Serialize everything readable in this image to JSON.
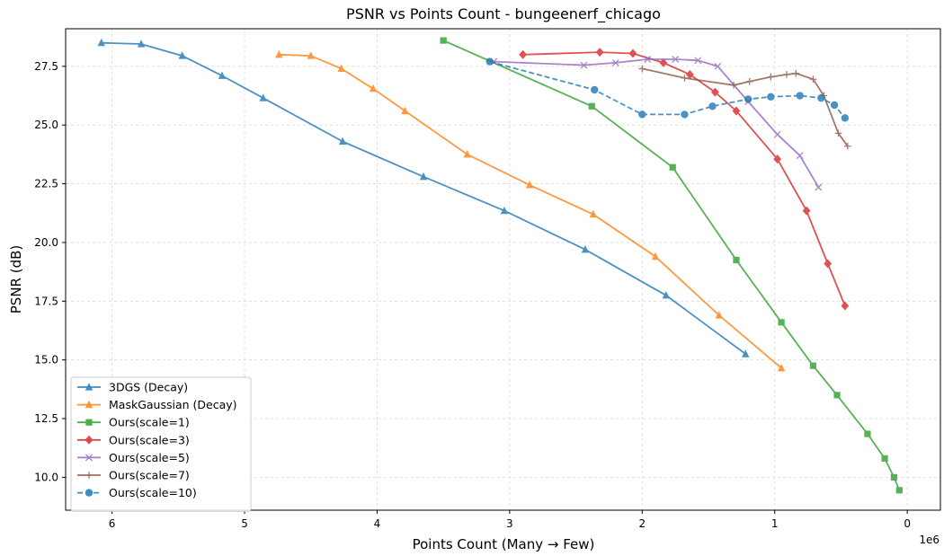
{
  "chart_data": {
    "type": "line",
    "title": "PSNR vs Points Count - bungeenerf_chicago",
    "xlabel": "Points Count (Many → Few)",
    "ylabel": "PSNR (dB)",
    "x_offset_label": "1e6",
    "x_inverted": true,
    "xlim": [
      6.35,
      -0.25
    ],
    "ylim": [
      8.6,
      29.1
    ],
    "x_ticks": [
      6,
      5,
      4,
      3,
      2,
      1,
      0
    ],
    "y_ticks": [
      10.0,
      12.5,
      15.0,
      17.5,
      20.0,
      22.5,
      25.0,
      27.5
    ],
    "x_tick_labels": [
      "6",
      "5",
      "4",
      "3",
      "2",
      "1",
      "0"
    ],
    "y_tick_labels": [
      "10.0",
      "12.5",
      "15.0",
      "17.5",
      "20.0",
      "22.5",
      "25.0",
      "27.5"
    ],
    "grid": true,
    "legend_position": "lower-left",
    "series": [
      {
        "name": "3DGS (Decay)",
        "color": "#1f77b4",
        "marker": "triangle",
        "dash": "solid",
        "x": [
          6.08,
          5.78,
          5.47,
          5.17,
          4.86,
          4.26,
          3.65,
          3.04,
          2.43,
          1.82,
          1.22
        ],
        "y": [
          28.5,
          28.45,
          27.95,
          27.1,
          26.15,
          24.3,
          22.8,
          21.35,
          19.7,
          17.75,
          15.25
        ]
      },
      {
        "name": "MaskGaussian (Decay)",
        "color": "#ff7f0e",
        "marker": "triangle",
        "dash": "solid",
        "x": [
          4.74,
          4.5,
          4.27,
          4.03,
          3.79,
          3.32,
          2.85,
          2.37,
          1.9,
          1.42,
          0.95
        ],
        "y": [
          28.0,
          27.95,
          27.4,
          26.55,
          25.6,
          23.75,
          22.45,
          21.2,
          19.4,
          16.9,
          14.65
        ]
      },
      {
        "name": "Ours(scale=1)",
        "color": "#2ca02c",
        "marker": "square",
        "dash": "solid",
        "x": [
          3.5,
          2.38,
          1.77,
          1.29,
          0.95,
          0.71,
          0.53,
          0.3,
          0.17,
          0.1,
          0.06
        ],
        "y": [
          28.6,
          25.8,
          23.2,
          19.25,
          16.6,
          14.75,
          13.5,
          11.85,
          10.8,
          10.0,
          9.45
        ]
      },
      {
        "name": "Ours(scale=3)",
        "color": "#d62728",
        "marker": "diamond",
        "dash": "solid",
        "x": [
          2.9,
          2.32,
          2.07,
          1.84,
          1.64,
          1.45,
          1.29,
          0.98,
          0.76,
          0.6,
          0.47
        ],
        "y": [
          28.0,
          28.1,
          28.05,
          27.65,
          27.15,
          26.4,
          25.6,
          23.55,
          21.35,
          19.1,
          17.3
        ]
      },
      {
        "name": "Ours(scale=5)",
        "color": "#9467bd",
        "marker": "x",
        "dash": "solid",
        "x": [
          3.12,
          2.44,
          2.2,
          1.96,
          1.75,
          1.58,
          1.43,
          1.2,
          0.98,
          0.81,
          0.67
        ],
        "y": [
          27.7,
          27.55,
          27.65,
          27.8,
          27.8,
          27.75,
          27.5,
          26.0,
          24.6,
          23.7,
          22.35
        ]
      },
      {
        "name": "Ours(scale=7)",
        "color": "#8c564b",
        "marker": "plus",
        "dash": "solid",
        "x": [
          2.0,
          1.68,
          1.31,
          1.19,
          1.03,
          0.91,
          0.84,
          0.71,
          0.63,
          0.52,
          0.45
        ],
        "y": [
          27.4,
          27.0,
          26.7,
          26.85,
          27.05,
          27.15,
          27.2,
          26.95,
          26.25,
          24.65,
          24.1
        ]
      },
      {
        "name": "Ours(scale=10)",
        "color": "#1f77b4",
        "marker": "circle",
        "dash": "dashed",
        "x": [
          3.15,
          2.36,
          2.0,
          1.68,
          1.47,
          1.2,
          1.03,
          0.81,
          0.65,
          0.55,
          0.47
        ],
        "y": [
          27.7,
          26.5,
          25.45,
          25.45,
          25.8,
          26.1,
          26.2,
          26.25,
          26.15,
          25.85,
          25.3
        ]
      }
    ]
  }
}
